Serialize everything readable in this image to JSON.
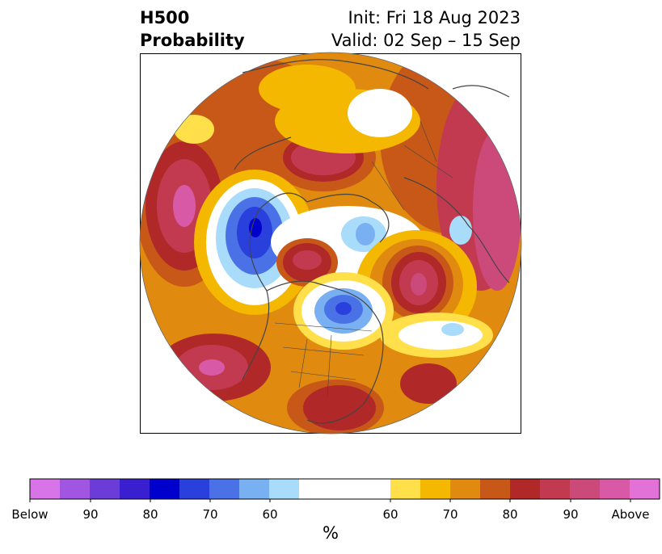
{
  "title": {
    "line1_left": "H500",
    "line2_left": "Probability",
    "line1_right": "Init: Fri 18 Aug 2023",
    "line2_right": "Valid: 02 Sep – 15 Sep"
  },
  "colorbar": {
    "unit": "%",
    "tick_labels": [
      "Below",
      "90",
      "80",
      "70",
      "60",
      "60",
      "70",
      "80",
      "90",
      "Above"
    ],
    "below_colors": [
      "#d873e8",
      "#a056e0",
      "#6c3cd8",
      "#3a1fd0",
      "#0000cc",
      "#2a40dc",
      "#4a72e6",
      "#78b0f2",
      "#a8dcfa"
    ],
    "neutral_color": "#ffffff",
    "above_colors": [
      "#ffe04a",
      "#f4b800",
      "#e08a10",
      "#c85818",
      "#b02828",
      "#c23a50",
      "#cc4a7a",
      "#d85aa6",
      "#e272d8"
    ]
  },
  "map": {
    "projection": "north-polar-stereographic",
    "field": "500 hPa height tercile probability"
  }
}
